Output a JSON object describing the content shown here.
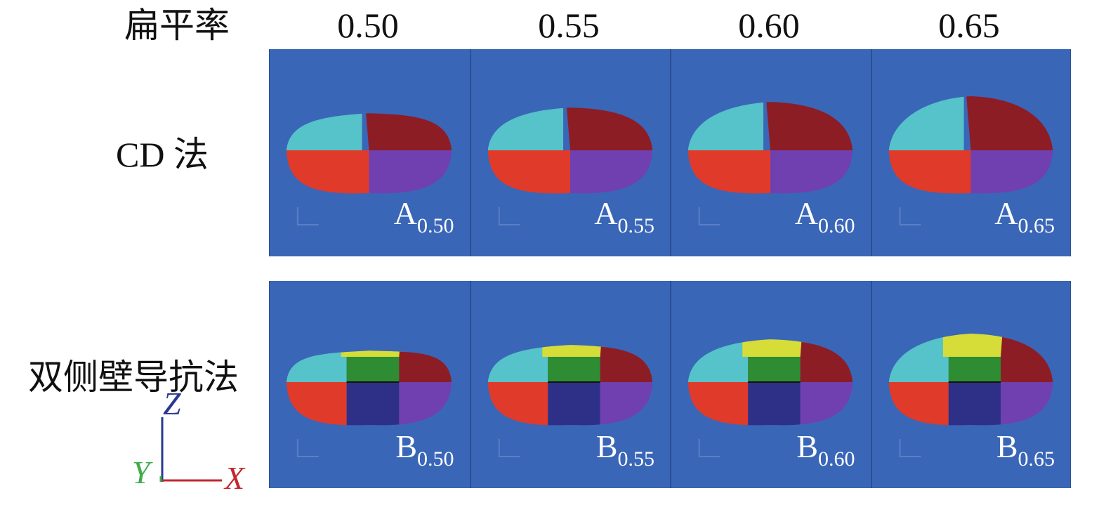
{
  "header": {
    "label": "扁平率",
    "ratios": [
      "0.50",
      "0.55",
      "0.60",
      "0.65"
    ]
  },
  "rows": [
    {
      "label": "CD 法",
      "method": "CD",
      "panels": [
        {
          "letter": "A",
          "sub": "0.50",
          "flatness": 0.5
        },
        {
          "letter": "A",
          "sub": "0.55",
          "flatness": 0.55
        },
        {
          "letter": "A",
          "sub": "0.60",
          "flatness": 0.6
        },
        {
          "letter": "A",
          "sub": "0.65",
          "flatness": 0.65
        }
      ]
    },
    {
      "label": "双侧壁导抗法",
      "method": "double-side-wall",
      "panels": [
        {
          "letter": "B",
          "sub": "0.50",
          "flatness": 0.5
        },
        {
          "letter": "B",
          "sub": "0.55",
          "flatness": 0.55
        },
        {
          "letter": "B",
          "sub": "0.60",
          "flatness": 0.6
        },
        {
          "letter": "B",
          "sub": "0.65",
          "flatness": 0.65
        }
      ]
    }
  ],
  "axes": {
    "z": "Z",
    "y": "Y",
    "x": "X"
  },
  "colors": {
    "background": "#3a66b7",
    "cyan": "#55c3c9",
    "dark_red": "#8d1d25",
    "red": "#e03a2a",
    "purple": "#7040b0",
    "yellow": "#d6dc38",
    "green": "#2e8c33",
    "navy": "#2e3088",
    "axis_z": "#2a3990",
    "axis_y": "#3fae49",
    "axis_x": "#c1272d"
  }
}
